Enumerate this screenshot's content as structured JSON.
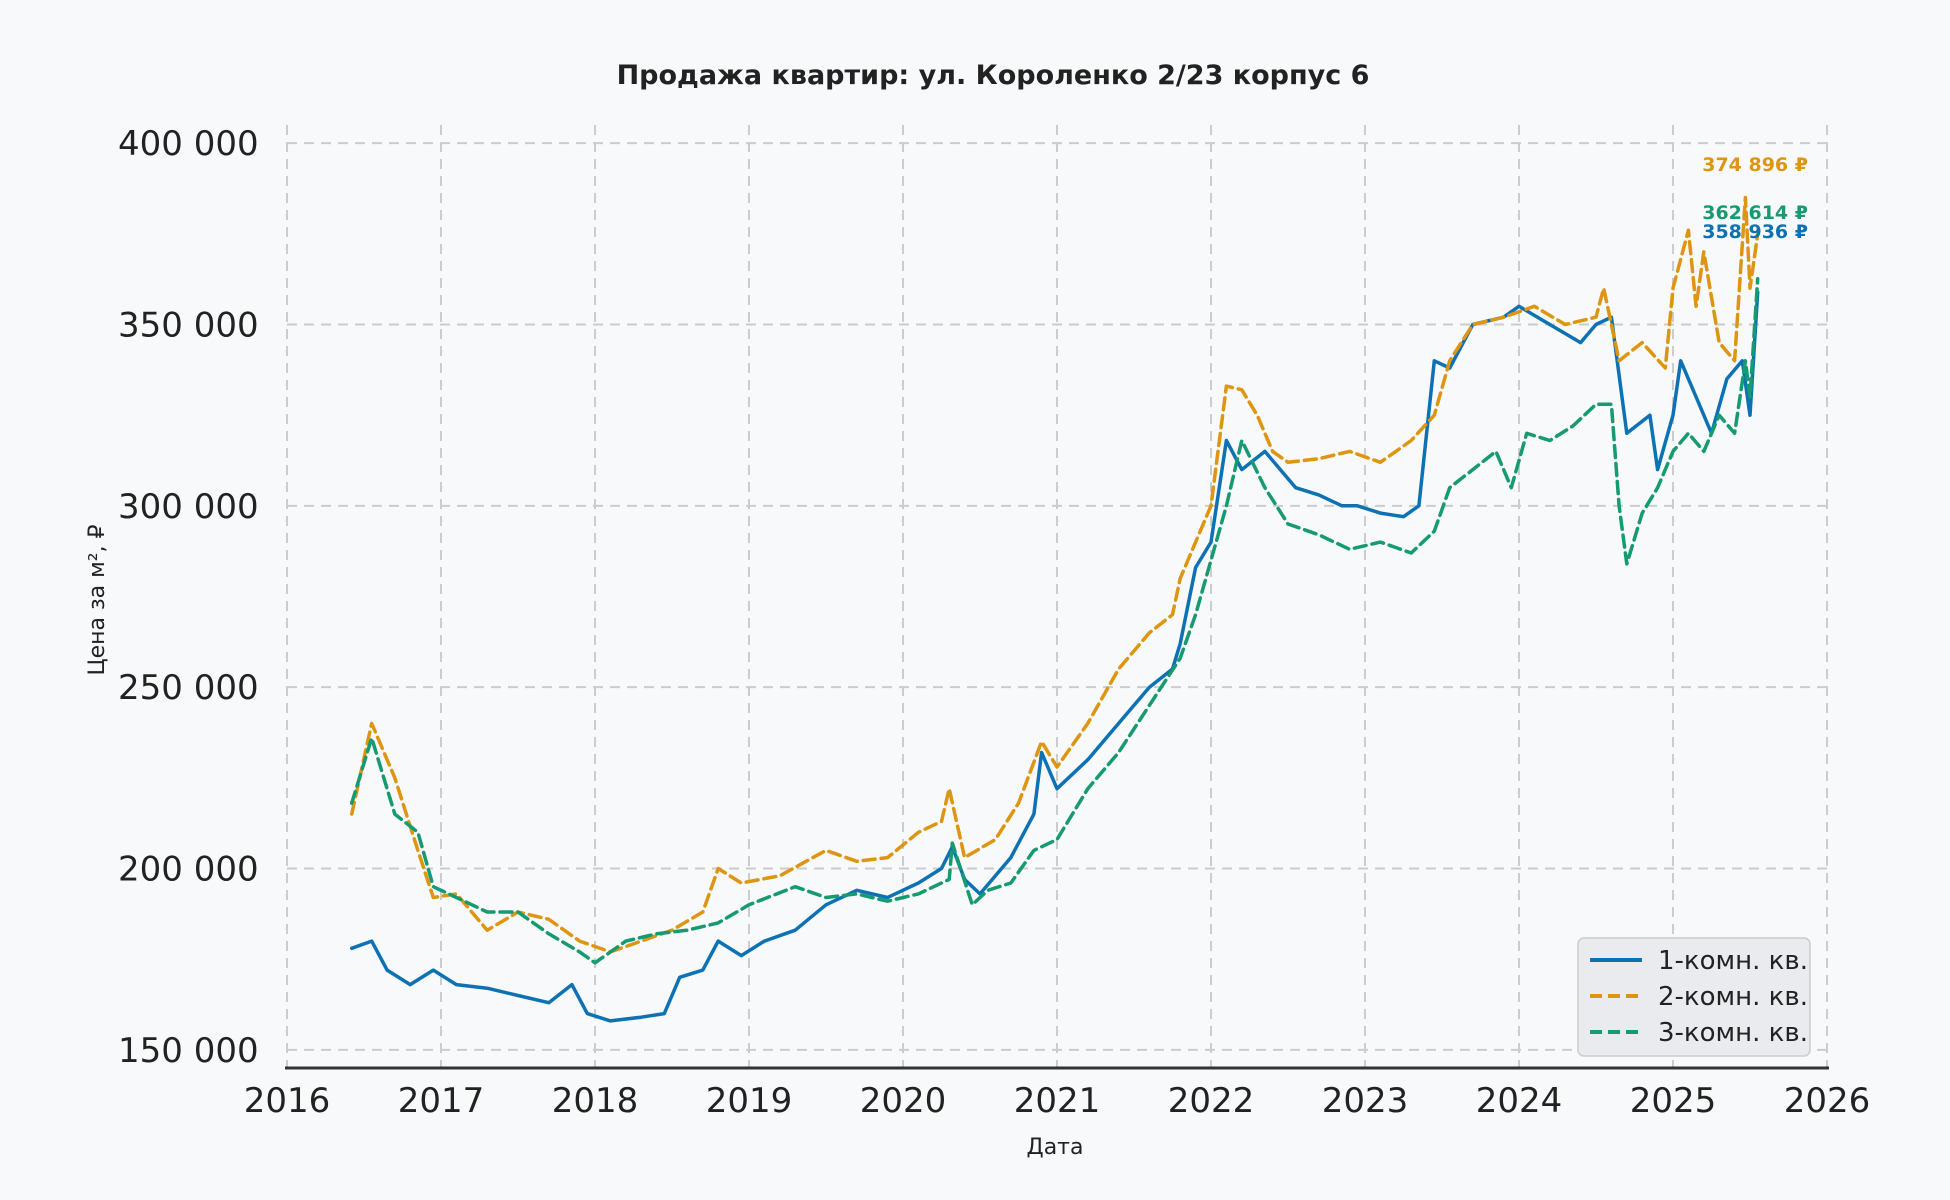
{
  "chart_data": {
    "type": "line",
    "title": "Продажа квартир: ул. Короленко 2/23 корпус 6",
    "xlabel": "Дата",
    "ylabel": "Цена за м², ₽",
    "xlim": [
      2016.0,
      2026.0
    ],
    "ylim": [
      145000,
      405000
    ],
    "x_ticks": [
      "2016",
      "2017",
      "2018",
      "2019",
      "2020",
      "2021",
      "2022",
      "2023",
      "2024",
      "2025",
      "2026"
    ],
    "y_ticks": [
      {
        "value": 150000,
        "label": "150 000"
      },
      {
        "value": 200000,
        "label": "200 000"
      },
      {
        "value": 250000,
        "label": "250 000"
      },
      {
        "value": 300000,
        "label": "300 000"
      },
      {
        "value": 350000,
        "label": "350 000"
      },
      {
        "value": 400000,
        "label": "400 000"
      }
    ],
    "grid": true,
    "legend_position": "bottom-right",
    "series": [
      {
        "name": "1-комн. кв.",
        "color": "#0d72b4",
        "dash": "solid",
        "end_label": "358 936 ₽",
        "x": [
          2016.42,
          2016.55,
          2016.65,
          2016.8,
          2016.95,
          2017.1,
          2017.3,
          2017.5,
          2017.7,
          2017.85,
          2017.95,
          2018.1,
          2018.3,
          2018.45,
          2018.55,
          2018.7,
          2018.8,
          2018.95,
          2019.1,
          2019.3,
          2019.5,
          2019.7,
          2019.9,
          2020.1,
          2020.25,
          2020.32,
          2020.4,
          2020.5,
          2020.7,
          2020.85,
          2020.9,
          2021.0,
          2021.2,
          2021.4,
          2021.6,
          2021.75,
          2021.8,
          2021.9,
          2022.0,
          2022.1,
          2022.2,
          2022.35,
          2022.55,
          2022.7,
          2022.85,
          2022.95,
          2023.1,
          2023.25,
          2023.35,
          2023.45,
          2023.55,
          2023.7,
          2023.9,
          2024.0,
          2024.2,
          2024.4,
          2024.5,
          2024.6,
          2024.7,
          2024.85,
          2024.9,
          2025.0,
          2025.05,
          2025.15,
          2025.25,
          2025.35,
          2025.45,
          2025.5,
          2025.55
        ],
        "y": [
          178000,
          180000,
          172000,
          168000,
          172000,
          168000,
          167000,
          165000,
          163000,
          168000,
          160000,
          158000,
          159000,
          160000,
          170000,
          172000,
          180000,
          176000,
          180000,
          183000,
          190000,
          194000,
          192000,
          196000,
          200000,
          206000,
          197000,
          193000,
          203000,
          215000,
          232000,
          222000,
          230000,
          240000,
          250000,
          255000,
          262000,
          283000,
          290000,
          318000,
          310000,
          315000,
          305000,
          303000,
          300000,
          300000,
          298000,
          297000,
          300000,
          340000,
          338000,
          350000,
          352000,
          355000,
          350000,
          345000,
          350000,
          352000,
          320000,
          325000,
          310000,
          325000,
          340000,
          330000,
          320000,
          335000,
          340000,
          325000,
          358936
        ]
      },
      {
        "name": "2-комн. кв.",
        "color": "#de9511",
        "dash": "dashed",
        "end_label": "374 896 ₽",
        "x": [
          2016.42,
          2016.55,
          2016.7,
          2016.85,
          2016.95,
          2017.1,
          2017.3,
          2017.5,
          2017.7,
          2017.9,
          2018.1,
          2018.3,
          2018.5,
          2018.7,
          2018.8,
          2018.95,
          2019.2,
          2019.5,
          2019.7,
          2019.9,
          2020.1,
          2020.25,
          2020.3,
          2020.4,
          2020.6,
          2020.75,
          2020.9,
          2021.0,
          2021.2,
          2021.4,
          2021.6,
          2021.75,
          2021.8,
          2021.9,
          2022.0,
          2022.1,
          2022.2,
          2022.3,
          2022.4,
          2022.5,
          2022.7,
          2022.9,
          2023.1,
          2023.3,
          2023.45,
          2023.55,
          2023.7,
          2023.9,
          2024.1,
          2024.3,
          2024.5,
          2024.55,
          2024.65,
          2024.8,
          2024.95,
          2025.0,
          2025.1,
          2025.15,
          2025.2,
          2025.3,
          2025.4,
          2025.47,
          2025.5,
          2025.55
        ],
        "y": [
          215000,
          240000,
          225000,
          205000,
          192000,
          193000,
          183000,
          188000,
          186000,
          180000,
          177000,
          180000,
          183000,
          188000,
          200000,
          196000,
          198000,
          205000,
          202000,
          203000,
          210000,
          213000,
          222000,
          203000,
          208000,
          218000,
          235000,
          228000,
          240000,
          255000,
          265000,
          270000,
          280000,
          290000,
          300000,
          333000,
          332000,
          325000,
          315000,
          312000,
          313000,
          315000,
          312000,
          318000,
          325000,
          340000,
          350000,
          352000,
          355000,
          350000,
          352000,
          360000,
          340000,
          345000,
          338000,
          360000,
          376000,
          355000,
          370000,
          345000,
          340000,
          385000,
          360000,
          374896
        ]
      },
      {
        "name": "3-комн. кв.",
        "color": "#159a71",
        "dash": "dashed",
        "end_label": "362 614 ₽",
        "x": [
          2016.42,
          2016.55,
          2016.7,
          2016.85,
          2016.95,
          2017.1,
          2017.3,
          2017.5,
          2017.7,
          2017.9,
          2018.0,
          2018.2,
          2018.4,
          2018.6,
          2018.8,
          2019.0,
          2019.3,
          2019.5,
          2019.7,
          2019.9,
          2020.1,
          2020.3,
          2020.32,
          2020.45,
          2020.55,
          2020.7,
          2020.85,
          2021.0,
          2021.2,
          2021.4,
          2021.6,
          2021.8,
          2021.9,
          2022.0,
          2022.1,
          2022.2,
          2022.35,
          2022.5,
          2022.7,
          2022.9,
          2023.1,
          2023.3,
          2023.45,
          2023.55,
          2023.7,
          2023.85,
          2023.95,
          2024.05,
          2024.2,
          2024.35,
          2024.5,
          2024.6,
          2024.65,
          2024.7,
          2024.8,
          2024.9,
          2025.0,
          2025.1,
          2025.2,
          2025.3,
          2025.4,
          2025.47,
          2025.5,
          2025.55
        ],
        "y": [
          218000,
          236000,
          215000,
          210000,
          195000,
          192000,
          188000,
          188000,
          182000,
          177000,
          174000,
          180000,
          182000,
          183000,
          185000,
          190000,
          195000,
          192000,
          193000,
          191000,
          193000,
          197000,
          207000,
          190000,
          194000,
          196000,
          205000,
          208000,
          222000,
          232000,
          245000,
          258000,
          270000,
          285000,
          300000,
          318000,
          305000,
          295000,
          292000,
          288000,
          290000,
          287000,
          293000,
          305000,
          310000,
          315000,
          305000,
          320000,
          318000,
          322000,
          328000,
          328000,
          300000,
          284000,
          298000,
          305000,
          315000,
          320000,
          315000,
          325000,
          320000,
          340000,
          330000,
          362614
        ]
      }
    ]
  }
}
